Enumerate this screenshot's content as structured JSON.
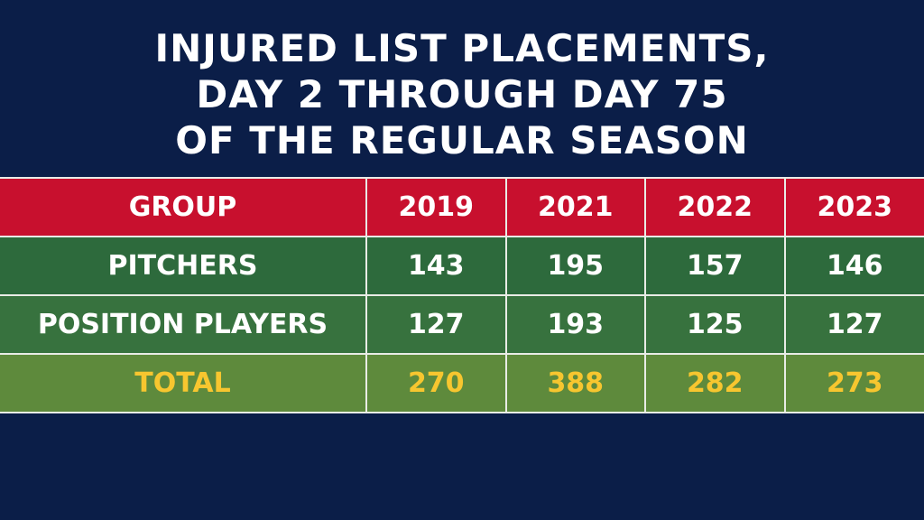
{
  "title": {
    "lines": [
      "INJURED LIST PLACEMENTS,",
      "DAY 2 THROUGH DAY 75",
      "OF THE REGULAR SEASON"
    ]
  },
  "table": {
    "headers": [
      "GROUP",
      "2019",
      "2021",
      "2022",
      "2023"
    ],
    "rows": [
      {
        "label": "PITCHERS",
        "values": [
          "143",
          "195",
          "157",
          "146"
        ]
      },
      {
        "label": "POSITION PLAYERS",
        "values": [
          "127",
          "193",
          "125",
          "127"
        ]
      },
      {
        "label": "TOTAL",
        "values": [
          "270",
          "388",
          "282",
          "273"
        ]
      }
    ]
  },
  "colors": {
    "background": "#0b1e48",
    "header": "#c8102e",
    "body_green": "#2d6a3c",
    "total_text": "#f7c62f"
  },
  "chart_data": {
    "type": "table",
    "title": "INJURED LIST PLACEMENTS, DAY 2 THROUGH DAY 75 OF THE REGULAR SEASON",
    "columns": [
      "GROUP",
      "2019",
      "2021",
      "2022",
      "2023"
    ],
    "categories": [
      "2019",
      "2021",
      "2022",
      "2023"
    ],
    "series": [
      {
        "name": "PITCHERS",
        "values": [
          143,
          195,
          157,
          146
        ]
      },
      {
        "name": "POSITION PLAYERS",
        "values": [
          127,
          193,
          125,
          127
        ]
      },
      {
        "name": "TOTAL",
        "values": [
          270,
          388,
          282,
          273
        ]
      }
    ]
  }
}
